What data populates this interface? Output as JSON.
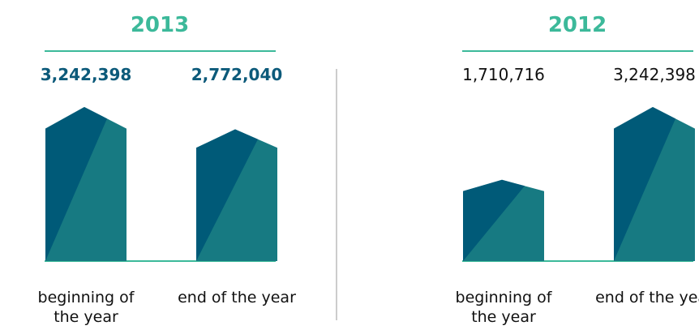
{
  "chart_data": [
    {
      "type": "house-bar",
      "title": "2013",
      "categories": [
        "beginning of the year",
        "end of the year"
      ],
      "values": [
        3242398,
        2772040
      ],
      "value_labels": [
        "3,242,398",
        "2,772,040"
      ],
      "colors": [
        "#005a78",
        "#177a82"
      ]
    },
    {
      "type": "house-bar",
      "title": "2012",
      "categories": [
        "beginning of the year",
        "end of the year"
      ],
      "values": [
        1710716,
        3242398
      ],
      "value_labels": [
        "1,710,716",
        "3,242,398"
      ],
      "colors": [
        "#005a78",
        "#177a82"
      ]
    }
  ]
}
